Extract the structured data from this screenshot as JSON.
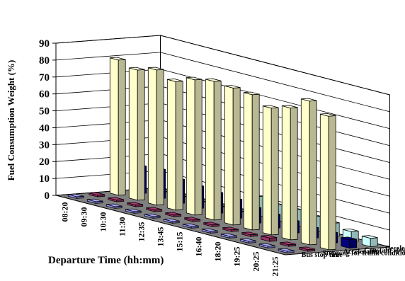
{
  "chart_data": {
    "type": "bar",
    "subtype": "3d-clustered-depth",
    "ylabel": "Fuel Consumption Weight  (%)",
    "xlabel": "Departure Time   (hh:mm)",
    "ylim": [
      0,
      90
    ],
    "yticks": [
      "0",
      "10",
      "20",
      "30",
      "40",
      "50",
      "60",
      "70",
      "80",
      "90"
    ],
    "categories": [
      "08:20",
      "09:30",
      "10:30",
      "11:30",
      "12:35",
      "13:45",
      "15:15",
      "16:40",
      "18:20",
      "19:25",
      "20:25",
      "21:25"
    ],
    "series": [
      {
        "name": "Bus stop time",
        "color": "#9999ff",
        "values": [
          1,
          1,
          1,
          1,
          1,
          1,
          1,
          1,
          1,
          1,
          1,
          1
        ]
      },
      {
        "name": "Stopping for trafik condition",
        "color": "#993366",
        "values": [
          1,
          1,
          1,
          1,
          1,
          1,
          1,
          1,
          1,
          2,
          1,
          1
        ]
      },
      {
        "name": "Acceleration",
        "color": "#ffffcc",
        "values": [
          80,
          77,
          80,
          76,
          80,
          82,
          81,
          80,
          75,
          78,
          85,
          79
        ]
      },
      {
        "name": "Constant speed",
        "color": "#000080",
        "values": [
          16,
          17,
          14,
          13,
          12,
          11,
          9,
          8,
          7,
          6,
          6,
          5
        ]
      },
      {
        "name": "Deceleration",
        "color": "#ccffff",
        "values": [
          0,
          0,
          0,
          0,
          0,
          12,
          10,
          10,
          9,
          8,
          6,
          5
        ]
      }
    ],
    "grid": true,
    "legend": "none",
    "series_labels_position": "right, along depth axis"
  }
}
